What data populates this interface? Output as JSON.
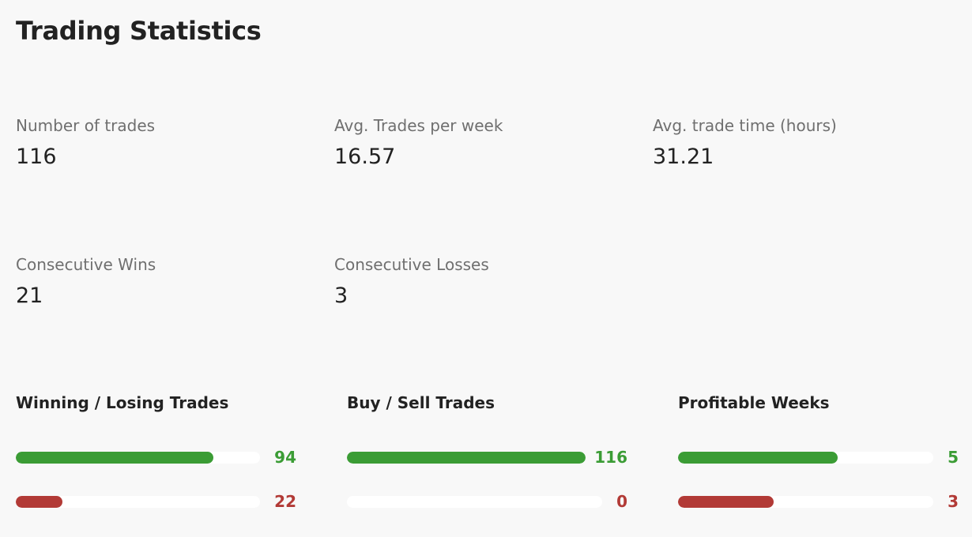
{
  "title": "Trading Statistics",
  "colors": {
    "win": "#3b9c35",
    "loss": "#b23a36",
    "track": "#ffffff"
  },
  "stats": [
    {
      "label": "Number of trades",
      "value": "116"
    },
    {
      "label": "Avg. Trades per week",
      "value": "16.57"
    },
    {
      "label": "Avg. trade time (hours)",
      "value": "31.21"
    },
    {
      "label": "Consecutive Wins",
      "value": "21"
    },
    {
      "label": "Consecutive Losses",
      "value": "3"
    }
  ],
  "bar_groups": [
    {
      "title": "Winning / Losing Trades",
      "bars": [
        {
          "value": "94",
          "fraction": 0.81,
          "color": "#3b9c35"
        },
        {
          "value": "22",
          "fraction": 0.19,
          "color": "#b23a36"
        }
      ]
    },
    {
      "title": "Buy / Sell Trades",
      "bars": [
        {
          "value": "116",
          "fraction": 1.0,
          "color": "#3b9c35"
        },
        {
          "value": "0",
          "fraction": 0.0,
          "color": "#b23a36"
        }
      ]
    },
    {
      "title": "Profitable Weeks",
      "bars": [
        {
          "value": "5",
          "fraction": 0.625,
          "color": "#3b9c35"
        },
        {
          "value": "3",
          "fraction": 0.375,
          "color": "#b23a36"
        }
      ]
    }
  ]
}
